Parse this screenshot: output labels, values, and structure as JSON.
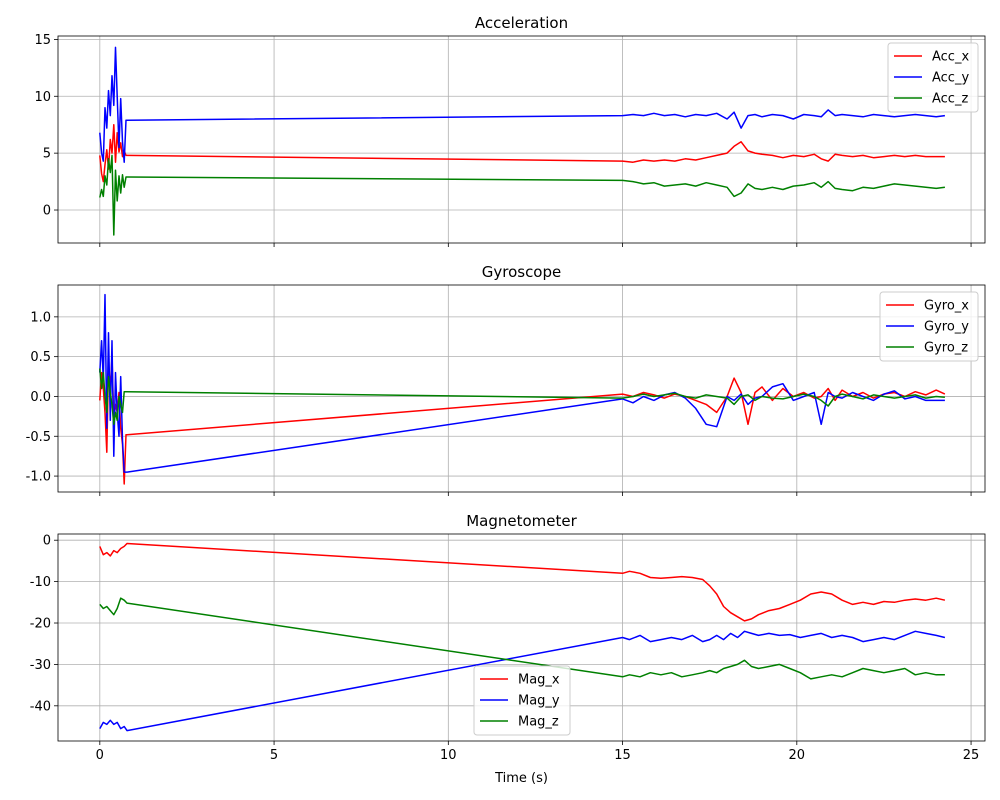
{
  "chart_data": [
    {
      "type": "line",
      "title": "Acceleration",
      "xlabel": "",
      "ylabel": "",
      "xlim": [
        -1.2,
        25.4
      ],
      "ylim": [
        -2.9,
        15.3
      ],
      "xticks": [
        0,
        5,
        10,
        15,
        20,
        25
      ],
      "xtick_labels": [],
      "yticks": [
        0,
        5,
        10,
        15
      ],
      "ytick_labels": [
        "0",
        "5",
        "10",
        "15"
      ],
      "grid": true,
      "legend_position": "top-right",
      "series": [
        {
          "name": "Acc_x",
          "color": "#ff0000",
          "x": [
            0,
            0.05,
            0.1,
            0.15,
            0.2,
            0.25,
            0.3,
            0.35,
            0.4,
            0.45,
            0.5,
            0.55,
            0.6,
            0.65,
            0.7,
            0.75,
            0.78,
            15.0,
            15.3,
            15.6,
            15.9,
            16.2,
            16.5,
            16.8,
            17.1,
            17.4,
            17.7,
            18.0,
            18.2,
            18.4,
            18.6,
            18.8,
            19.0,
            19.3,
            19.6,
            19.9,
            20.2,
            20.5,
            20.7,
            20.9,
            21.1,
            21.3,
            21.6,
            21.9,
            22.2,
            22.5,
            22.8,
            23.1,
            23.4,
            23.7,
            24.0,
            24.25
          ],
          "y": [
            4.8,
            3.2,
            2.5,
            4.0,
            5.3,
            3.6,
            6.2,
            5.0,
            7.5,
            4.2,
            6.8,
            5.1,
            5.9,
            4.7,
            5.2,
            4.8,
            4.8,
            4.3,
            4.2,
            4.4,
            4.3,
            4.4,
            4.3,
            4.5,
            4.4,
            4.6,
            4.8,
            5.0,
            5.6,
            6.0,
            5.2,
            5.0,
            4.9,
            4.8,
            4.6,
            4.8,
            4.7,
            4.9,
            4.5,
            4.3,
            4.9,
            4.8,
            4.7,
            4.8,
            4.6,
            4.7,
            4.8,
            4.7,
            4.8,
            4.7,
            4.7,
            4.7
          ]
        },
        {
          "name": "Acc_y",
          "color": "#0000ff",
          "x": [
            0,
            0.05,
            0.1,
            0.15,
            0.2,
            0.25,
            0.3,
            0.35,
            0.4,
            0.45,
            0.5,
            0.55,
            0.6,
            0.65,
            0.7,
            0.75,
            0.78,
            15.0,
            15.3,
            15.6,
            15.9,
            16.2,
            16.5,
            16.8,
            17.1,
            17.4,
            17.7,
            18.0,
            18.2,
            18.4,
            18.6,
            18.8,
            19.0,
            19.3,
            19.6,
            19.9,
            20.2,
            20.5,
            20.7,
            20.9,
            21.1,
            21.3,
            21.6,
            21.9,
            22.2,
            22.5,
            22.8,
            23.1,
            23.4,
            23.7,
            24.0,
            24.25
          ],
          "y": [
            6.8,
            5.0,
            4.3,
            9.0,
            7.2,
            10.5,
            8.3,
            11.8,
            9.2,
            14.3,
            10.0,
            5.5,
            9.8,
            6.0,
            4.2,
            7.9,
            7.9,
            8.3,
            8.4,
            8.3,
            8.5,
            8.3,
            8.4,
            8.2,
            8.4,
            8.3,
            8.5,
            8.0,
            8.6,
            7.2,
            8.3,
            8.4,
            8.2,
            8.4,
            8.3,
            8.0,
            8.4,
            8.3,
            8.2,
            8.8,
            8.3,
            8.4,
            8.3,
            8.2,
            8.4,
            8.3,
            8.2,
            8.3,
            8.4,
            8.3,
            8.2,
            8.3
          ]
        },
        {
          "name": "Acc_z",
          "color": "#008000",
          "x": [
            0,
            0.05,
            0.1,
            0.15,
            0.2,
            0.25,
            0.3,
            0.35,
            0.4,
            0.45,
            0.5,
            0.55,
            0.6,
            0.65,
            0.7,
            0.75,
            0.78,
            15.0,
            15.3,
            15.6,
            15.9,
            16.2,
            16.5,
            16.8,
            17.1,
            17.4,
            17.7,
            18.0,
            18.2,
            18.4,
            18.6,
            18.8,
            19.0,
            19.3,
            19.6,
            19.9,
            20.2,
            20.5,
            20.7,
            20.9,
            21.1,
            21.3,
            21.6,
            21.9,
            22.2,
            22.5,
            22.8,
            23.1,
            23.4,
            23.7,
            24.0,
            24.25
          ],
          "y": [
            1.1,
            1.8,
            1.2,
            3.0,
            2.2,
            4.5,
            3.3,
            4.8,
            -2.2,
            3.5,
            0.8,
            3.0,
            1.5,
            3.1,
            2.0,
            2.9,
            2.9,
            2.6,
            2.5,
            2.3,
            2.4,
            2.1,
            2.2,
            2.3,
            2.1,
            2.4,
            2.2,
            2.0,
            1.2,
            1.5,
            2.3,
            1.9,
            1.8,
            2.0,
            1.8,
            2.1,
            2.2,
            2.4,
            2.0,
            2.5,
            1.9,
            1.8,
            1.7,
            2.0,
            1.9,
            2.1,
            2.3,
            2.2,
            2.1,
            2.0,
            1.9,
            2.0
          ]
        }
      ]
    },
    {
      "type": "line",
      "title": "Gyroscope",
      "xlabel": "",
      "ylabel": "",
      "xlim": [
        -1.2,
        25.4
      ],
      "ylim": [
        -1.2,
        1.4
      ],
      "xticks": [
        0,
        5,
        10,
        15,
        20,
        25
      ],
      "xtick_labels": [],
      "yticks": [
        -1.0,
        -0.5,
        0.0,
        0.5,
        1.0
      ],
      "ytick_labels": [
        "-1.0",
        "-0.5",
        "0.0",
        "0.5",
        "1.0"
      ],
      "grid": true,
      "legend_position": "top-right",
      "series": [
        {
          "name": "Gyro_x",
          "color": "#ff0000",
          "x": [
            0,
            0.05,
            0.1,
            0.15,
            0.2,
            0.25,
            0.3,
            0.35,
            0.4,
            0.45,
            0.5,
            0.55,
            0.6,
            0.65,
            0.7,
            0.75,
            0.78,
            15.0,
            15.3,
            15.6,
            15.9,
            16.2,
            16.5,
            16.8,
            17.1,
            17.4,
            17.7,
            18.0,
            18.2,
            18.4,
            18.6,
            18.8,
            19.0,
            19.3,
            19.6,
            19.9,
            20.2,
            20.5,
            20.7,
            20.9,
            21.1,
            21.3,
            21.6,
            21.9,
            22.2,
            22.5,
            22.8,
            23.1,
            23.4,
            23.7,
            24.0,
            24.25
          ],
          "y": [
            -0.05,
            0.3,
            0.1,
            -0.2,
            -0.7,
            0.4,
            0.1,
            0.5,
            -0.3,
            -0.1,
            -0.2,
            0.05,
            -0.4,
            -0.6,
            -1.1,
            -0.48,
            -0.48,
            0.03,
            0.0,
            0.05,
            0.02,
            -0.02,
            0.03,
            0.0,
            -0.05,
            -0.1,
            -0.2,
            0.0,
            0.23,
            0.05,
            -0.35,
            0.05,
            0.12,
            -0.05,
            0.1,
            0.0,
            0.05,
            -0.02,
            0.0,
            0.1,
            -0.05,
            0.08,
            0.0,
            0.05,
            -0.02,
            0.03,
            0.05,
            0.0,
            0.06,
            0.02,
            0.08,
            0.03
          ]
        },
        {
          "name": "Gyro_y",
          "color": "#0000ff",
          "x": [
            0,
            0.05,
            0.1,
            0.15,
            0.2,
            0.25,
            0.3,
            0.35,
            0.4,
            0.45,
            0.5,
            0.55,
            0.6,
            0.65,
            0.7,
            0.75,
            0.78,
            15.0,
            15.3,
            15.6,
            15.9,
            16.2,
            16.5,
            16.8,
            17.1,
            17.4,
            17.7,
            18.0,
            18.2,
            18.4,
            18.6,
            18.8,
            19.0,
            19.3,
            19.6,
            19.9,
            20.2,
            20.5,
            20.7,
            20.9,
            21.1,
            21.3,
            21.6,
            21.9,
            22.2,
            22.5,
            22.8,
            23.1,
            23.4,
            23.7,
            24.0,
            24.25
          ],
          "y": [
            0.3,
            0.7,
            0.2,
            1.28,
            -0.4,
            0.8,
            -0.3,
            0.7,
            -0.75,
            0.3,
            -0.2,
            -0.5,
            0.25,
            -0.55,
            -0.95,
            -0.95,
            -0.95,
            -0.03,
            -0.08,
            0.0,
            -0.05,
            0.02,
            0.05,
            -0.02,
            -0.15,
            -0.35,
            -0.38,
            0.0,
            -0.05,
            0.03,
            -0.1,
            -0.02,
            0.0,
            0.12,
            0.16,
            -0.05,
            0.0,
            0.05,
            -0.35,
            0.05,
            0.0,
            -0.02,
            0.05,
            0.0,
            -0.05,
            0.03,
            0.07,
            -0.03,
            0.0,
            -0.05,
            -0.05,
            -0.05
          ]
        },
        {
          "name": "Gyro_z",
          "color": "#008000",
          "x": [
            0,
            0.05,
            0.1,
            0.15,
            0.2,
            0.25,
            0.3,
            0.35,
            0.4,
            0.45,
            0.5,
            0.55,
            0.6,
            0.65,
            0.7,
            0.75,
            0.78,
            15.0,
            15.3,
            15.6,
            15.9,
            16.2,
            16.5,
            16.8,
            17.1,
            17.4,
            17.7,
            18.0,
            18.2,
            18.4,
            18.6,
            18.8,
            19.0,
            19.3,
            19.6,
            19.9,
            20.2,
            20.5,
            20.7,
            20.9,
            21.1,
            21.3,
            21.6,
            21.9,
            22.2,
            22.5,
            22.8,
            23.1,
            23.4,
            23.7,
            24.0,
            24.25
          ],
          "y": [
            0.35,
            0.1,
            0.3,
            0.0,
            -0.2,
            0.25,
            0.05,
            -0.1,
            -0.35,
            -0.2,
            -0.3,
            0.0,
            -0.1,
            -0.2,
            0.06,
            0.06,
            0.06,
            -0.02,
            0.0,
            0.03,
            0.0,
            0.02,
            0.04,
            0.0,
            -0.02,
            0.02,
            0.0,
            -0.02,
            -0.1,
            0.0,
            0.02,
            -0.05,
            0.0,
            -0.02,
            -0.03,
            0.0,
            0.03,
            0.0,
            -0.05,
            -0.12,
            0.0,
            0.03,
            0.0,
            -0.03,
            0.02,
            0.0,
            -0.02,
            0.0,
            0.02,
            -0.02,
            0.0,
            -0.01
          ]
        }
      ]
    },
    {
      "type": "line",
      "title": "Magnetometer",
      "xlabel": "Time (s)",
      "ylabel": "",
      "xlim": [
        -1.2,
        25.4
      ],
      "ylim": [
        -48.5,
        1.5
      ],
      "xticks": [
        0,
        5,
        10,
        15,
        20,
        25
      ],
      "xtick_labels": [
        "0",
        "5",
        "10",
        "15",
        "20",
        "25"
      ],
      "yticks": [
        -40,
        -30,
        -20,
        -10,
        0
      ],
      "ytick_labels": [
        "-40",
        "-30",
        "-20",
        "-10",
        "0"
      ],
      "grid": true,
      "legend_position": "lower-center",
      "series": [
        {
          "name": "Mag_x",
          "color": "#ff0000",
          "x": [
            0,
            0.1,
            0.2,
            0.3,
            0.4,
            0.5,
            0.6,
            0.7,
            0.78,
            15.0,
            15.2,
            15.5,
            15.8,
            16.1,
            16.4,
            16.7,
            17.0,
            17.3,
            17.5,
            17.7,
            17.9,
            18.1,
            18.3,
            18.5,
            18.7,
            18.9,
            19.2,
            19.5,
            19.8,
            20.1,
            20.4,
            20.7,
            21.0,
            21.3,
            21.6,
            21.9,
            22.2,
            22.5,
            22.8,
            23.1,
            23.4,
            23.7,
            24.0,
            24.25
          ],
          "y": [
            -1.5,
            -3.5,
            -3.0,
            -3.8,
            -2.5,
            -3.0,
            -2.0,
            -1.5,
            -0.8,
            -8.0,
            -7.5,
            -8.0,
            -9.0,
            -9.2,
            -9.0,
            -8.8,
            -9.0,
            -9.5,
            -11.0,
            -13.0,
            -16.0,
            -17.5,
            -18.5,
            -19.5,
            -19.0,
            -18.0,
            -17.0,
            -16.5,
            -15.5,
            -14.5,
            -13.0,
            -12.5,
            -13.0,
            -14.5,
            -15.5,
            -15.0,
            -15.5,
            -14.8,
            -15.0,
            -14.5,
            -14.2,
            -14.5,
            -14.0,
            -14.5
          ]
        },
        {
          "name": "Mag_y",
          "color": "#0000ff",
          "x": [
            0,
            0.1,
            0.2,
            0.3,
            0.4,
            0.5,
            0.6,
            0.7,
            0.78,
            15.0,
            15.2,
            15.5,
            15.8,
            16.1,
            16.4,
            16.7,
            17.0,
            17.3,
            17.5,
            17.7,
            17.9,
            18.1,
            18.3,
            18.5,
            18.7,
            18.9,
            19.2,
            19.5,
            19.8,
            20.1,
            20.4,
            20.7,
            21.0,
            21.3,
            21.6,
            21.9,
            22.2,
            22.5,
            22.8,
            23.1,
            23.4,
            23.7,
            24.0,
            24.25
          ],
          "y": [
            -45.5,
            -44.0,
            -44.5,
            -43.5,
            -44.5,
            -44.0,
            -45.5,
            -45.0,
            -46.0,
            -23.5,
            -24.0,
            -23.0,
            -24.5,
            -24.0,
            -23.5,
            -24.0,
            -23.0,
            -24.5,
            -24.0,
            -23.0,
            -24.0,
            -22.5,
            -23.5,
            -22.0,
            -22.5,
            -23.0,
            -22.5,
            -23.0,
            -22.8,
            -23.5,
            -23.0,
            -22.5,
            -23.5,
            -23.0,
            -23.5,
            -24.5,
            -24.0,
            -23.5,
            -24.0,
            -23.0,
            -22.0,
            -22.5,
            -23.0,
            -23.5
          ]
        },
        {
          "name": "Mag_z",
          "color": "#008000",
          "x": [
            0,
            0.1,
            0.2,
            0.3,
            0.4,
            0.5,
            0.6,
            0.7,
            0.78,
            15.0,
            15.2,
            15.5,
            15.8,
            16.1,
            16.4,
            16.7,
            17.0,
            17.3,
            17.5,
            17.7,
            17.9,
            18.1,
            18.3,
            18.5,
            18.7,
            18.9,
            19.2,
            19.5,
            19.8,
            20.1,
            20.4,
            20.7,
            21.0,
            21.3,
            21.6,
            21.9,
            22.2,
            22.5,
            22.8,
            23.1,
            23.4,
            23.7,
            24.0,
            24.25
          ],
          "y": [
            -15.5,
            -16.5,
            -16.0,
            -17.0,
            -18.0,
            -16.5,
            -14.0,
            -14.5,
            -15.2,
            -33.0,
            -32.5,
            -33.0,
            -32.0,
            -32.5,
            -32.0,
            -33.0,
            -32.5,
            -32.0,
            -31.5,
            -32.0,
            -31.0,
            -30.5,
            -30.0,
            -29.0,
            -30.5,
            -31.0,
            -30.5,
            -30.0,
            -31.0,
            -32.0,
            -33.5,
            -33.0,
            -32.5,
            -33.0,
            -32.0,
            -31.0,
            -31.5,
            -32.0,
            -31.5,
            -31.0,
            -32.5,
            -32.0,
            -32.5,
            -32.5
          ]
        }
      ]
    }
  ]
}
